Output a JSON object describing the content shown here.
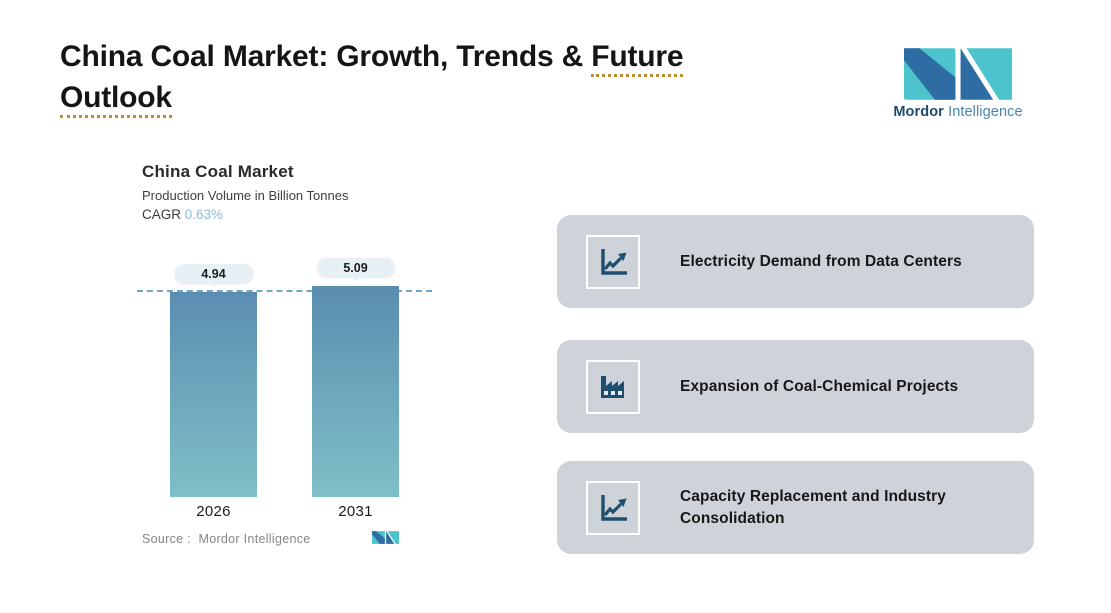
{
  "header": {
    "title_prefix": "China Coal Market: Growth, Trends &",
    "title_underline_a": "Future",
    "title_underline_b": "Outlook"
  },
  "brand": {
    "name_bold": "Mordor",
    "name_light": "Intelligence"
  },
  "chart": {
    "title": "China Coal Market",
    "subtitle": "Production Volume in Billion Tonnes",
    "cagr_label": "CAGR",
    "cagr_value": "0.63%",
    "source_label": "Source :",
    "source_value": "Mordor Intelligence"
  },
  "chart_data": {
    "type": "bar",
    "title": "China Coal Market",
    "xlabel": "",
    "ylabel": "Production Volume in Billion Tonnes",
    "cagr": "0.63%",
    "categories": [
      "2026",
      "2031"
    ],
    "values": [
      4.94,
      5.09
    ],
    "bar_labels": [
      "4.94",
      "5.09"
    ],
    "reference_line_at": 4.94,
    "grid": false,
    "legend": false,
    "bar_gradient_top": "#5b8db1",
    "bar_gradient_bottom": "#7fbfc7",
    "reference_line_color": "#6fa7c7"
  },
  "cards": [
    {
      "label": "Electricity Demand from Data Centers",
      "icon": "line-chart-icon"
    },
    {
      "label": "Expansion of Coal-Chemical Projects",
      "icon": "factory-icon"
    },
    {
      "label": "Capacity Replacement and Industry Consolidation",
      "icon": "line-chart-icon"
    }
  ],
  "colors": {
    "title_underline_orange": "#bd8d2f",
    "cagr_blue": "#8fb9d4",
    "card_bg": "#ced3d9",
    "icon_navy": "#1f4e6e",
    "logo_teal": "#4cc3cd",
    "logo_navy": "#2d6da3",
    "brand_text_dark": "#1d4a72",
    "brand_text_light": "#4a85ad"
  }
}
